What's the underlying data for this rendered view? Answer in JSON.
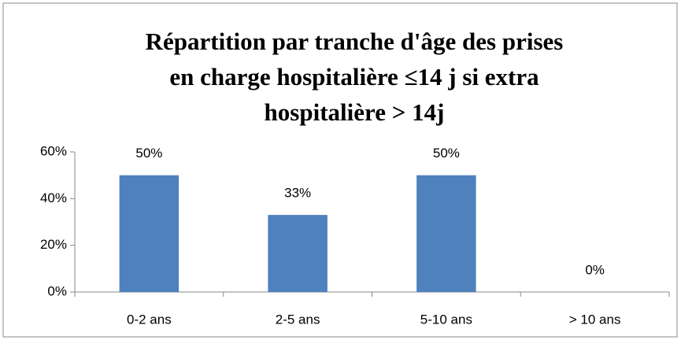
{
  "chart_data": {
    "type": "bar",
    "title": [
      "Répartition par tranche d'âge des prises",
      "en charge hospitalière  ≤14 j si extra",
      "hospitalière > 14j"
    ],
    "categories": [
      "0-2 ans",
      "2-5 ans",
      "5-10 ans",
      "> 10 ans"
    ],
    "values": [
      50,
      33,
      50,
      0
    ],
    "value_labels": [
      "50%",
      "33%",
      "50%",
      "0%"
    ],
    "color": "#4f81bd",
    "ylim": [
      0,
      60
    ],
    "yticks": [
      {
        "value": 0,
        "label": "0%"
      },
      {
        "value": 20,
        "label": "20%"
      },
      {
        "value": 40,
        "label": "40%"
      },
      {
        "value": 60,
        "label": "60%"
      }
    ],
    "grid": false
  }
}
